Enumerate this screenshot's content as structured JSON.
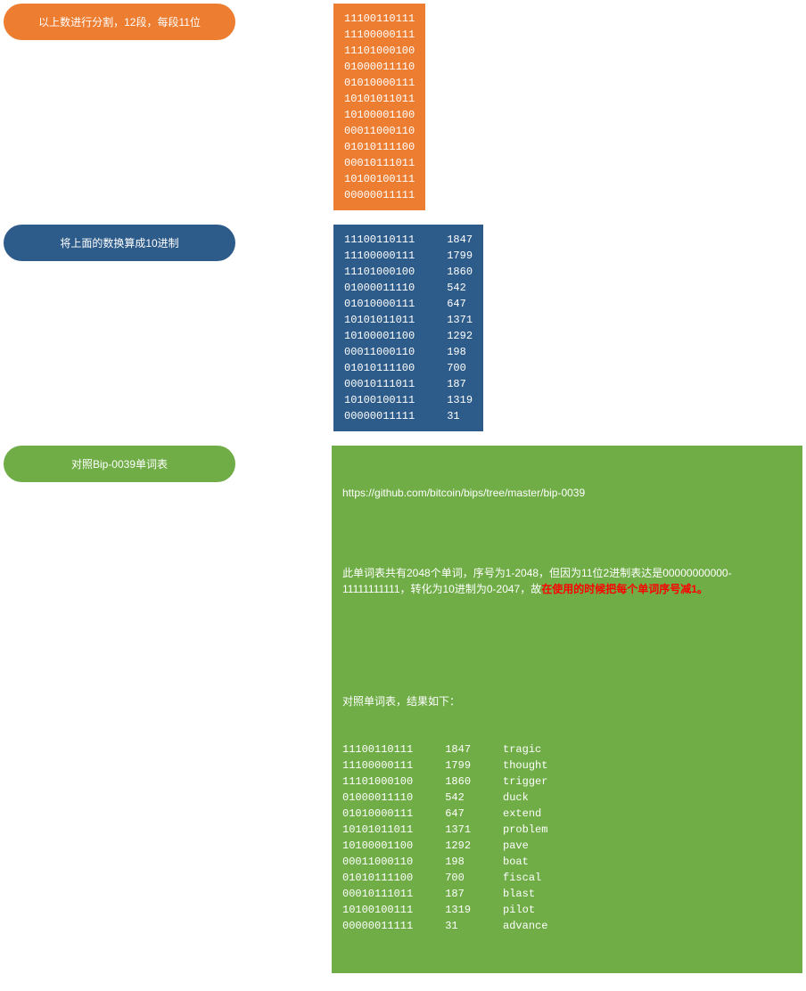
{
  "colors": {
    "orange": "#ed7d31",
    "blue": "#2e5c8a",
    "green": "#70ad47",
    "highlight": "#ff0000",
    "text": "#ffffff"
  },
  "step1": {
    "label": "以上数进行分割，12段，每段11位",
    "binary": [
      "11100110111",
      "11100000111",
      "11101000100",
      "01000011110",
      "01010000111",
      "10101011011",
      "10100001100",
      "00011000110",
      "01010111100",
      "00010111011",
      "10100100111",
      "00000011111"
    ]
  },
  "step2": {
    "label": "将上面的数换算成10进制",
    "rows": [
      {
        "bin": "11100110111",
        "dec": "1847"
      },
      {
        "bin": "11100000111",
        "dec": "1799"
      },
      {
        "bin": "11101000100",
        "dec": "1860"
      },
      {
        "bin": "01000011110",
        "dec": "542"
      },
      {
        "bin": "01010000111",
        "dec": "647"
      },
      {
        "bin": "10101011011",
        "dec": "1371"
      },
      {
        "bin": "10100001100",
        "dec": "1292"
      },
      {
        "bin": "00011000110",
        "dec": "198"
      },
      {
        "bin": "01010111100",
        "dec": "700"
      },
      {
        "bin": "00010111011",
        "dec": "187"
      },
      {
        "bin": "10100100111",
        "dec": "1319"
      },
      {
        "bin": "00000011111",
        "dec": "31"
      }
    ]
  },
  "step3": {
    "label": "对照Bip-0039单词表",
    "url": "https://github.com/bitcoin/bips/tree/master/bip-0039",
    "desc_part1": "此单词表共有2048个单词，序号为1-2048，但因为11位2进制表达是00000000000-11111111111，转化为10进制为0-2047，故",
    "desc_highlight": "在使用的时候把每个单词序号减1。",
    "result_header": "对照单词表，结果如下：",
    "rows": [
      {
        "bin": "11100110111",
        "dec": "1847",
        "word": "tragic"
      },
      {
        "bin": "11100000111",
        "dec": "1799",
        "word": "thought"
      },
      {
        "bin": "11101000100",
        "dec": "1860",
        "word": "trigger"
      },
      {
        "bin": "01000011110",
        "dec": "542",
        "word": "duck"
      },
      {
        "bin": "01010000111",
        "dec": "647",
        "word": "extend"
      },
      {
        "bin": "10101011011",
        "dec": "1371",
        "word": "problem"
      },
      {
        "bin": "10100001100",
        "dec": "1292",
        "word": "pave"
      },
      {
        "bin": "00011000110",
        "dec": "198",
        "word": "boat"
      },
      {
        "bin": "01010111100",
        "dec": "700",
        "word": "fiscal"
      },
      {
        "bin": "00010111011",
        "dec": "187",
        "word": "blast"
      },
      {
        "bin": "10100100111",
        "dec": "1319",
        "word": "pilot"
      },
      {
        "bin": "00000011111",
        "dec": "31",
        "word": "advance"
      }
    ]
  }
}
